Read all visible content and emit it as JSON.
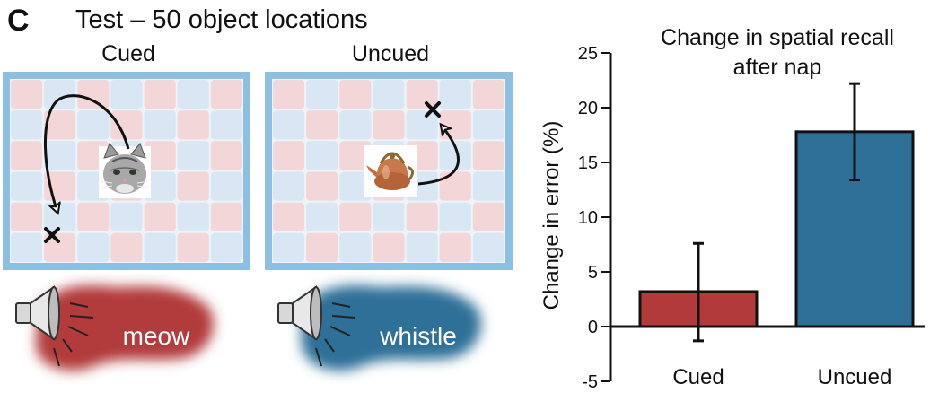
{
  "panel": {
    "letter": "C",
    "title": "Test – 50 object locations"
  },
  "grids": {
    "cued_label": "Cued",
    "uncued_label": "Uncued",
    "cued_object": "cat",
    "uncued_object": "kettle",
    "marker": "x"
  },
  "sounds": {
    "cued_word": "meow",
    "uncued_word": "whistle"
  },
  "colors": {
    "cued": "#b23a3a",
    "uncued": "#2e6f98",
    "frame": "#7fb7de",
    "tile_red": "#f2d6d8",
    "tile_blue": "#d8e7f3"
  },
  "chart_data": {
    "type": "bar",
    "title": "Change in spatial recall after nap",
    "title_lines": [
      "Change in spatial recall",
      "after nap"
    ],
    "ylabel": "Change in error (%)",
    "categories": [
      "Cued",
      "Uncued"
    ],
    "values": [
      3.2,
      17.8
    ],
    "error": [
      [
        -1.3,
        7.6
      ],
      [
        13.4,
        22.2
      ]
    ],
    "ylim": [
      -5,
      25
    ],
    "yticks": [
      "-5",
      "0",
      "5",
      "10",
      "15",
      "20",
      "25"
    ],
    "bar_colors": [
      "#b23a3a",
      "#2e6f98"
    ],
    "grid": false
  }
}
